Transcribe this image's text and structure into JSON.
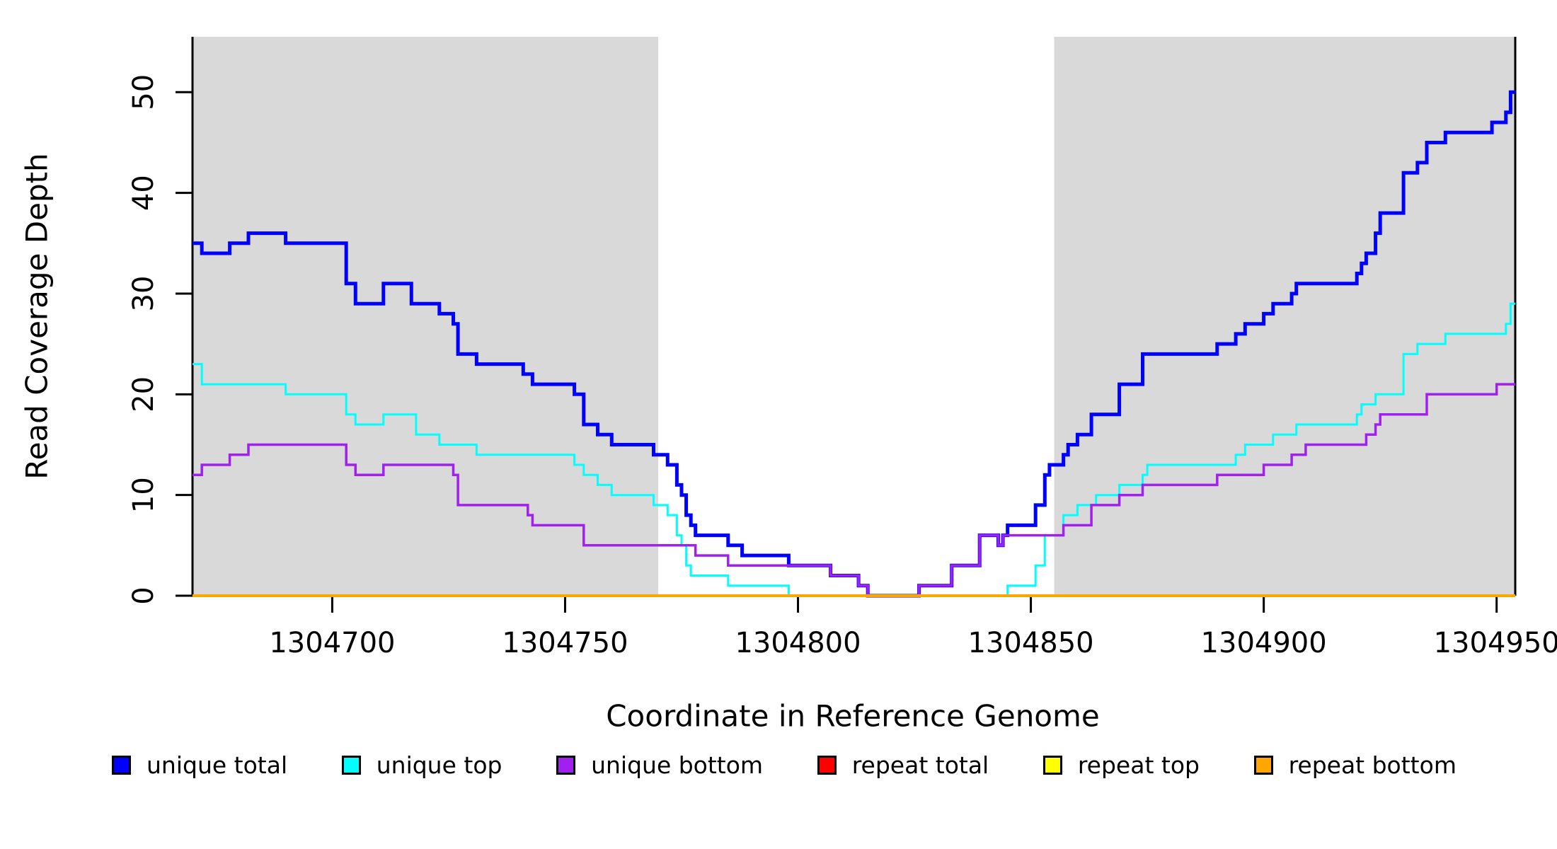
{
  "chart_data": {
    "type": "line",
    "subtype": "step-after",
    "title": "",
    "xlabel": "Coordinate in Reference Genome",
    "ylabel": "Read Coverage Depth",
    "xlim": [
      1304670,
      1304954
    ],
    "ylim": [
      0,
      55.5
    ],
    "x_ticks": [
      1304700,
      1304750,
      1304800,
      1304850,
      1304900,
      1304950
    ],
    "y_ticks": [
      0,
      10,
      20,
      30,
      40,
      50
    ],
    "grid": false,
    "legend_position": "bottom",
    "background_color": "#ffffff",
    "shaded_region_color": "#D9D9D9",
    "shaded_regions": [
      {
        "x0": 1304670,
        "x1": 1304770
      },
      {
        "x0": 1304855,
        "x1": 1304954
      }
    ],
    "series": [
      {
        "name": "unique total",
        "color": "#0000FF",
        "width": 5,
        "points": [
          [
            1304670,
            35
          ],
          [
            1304672,
            34
          ],
          [
            1304678,
            35
          ],
          [
            1304682,
            36
          ],
          [
            1304690,
            35
          ],
          [
            1304703,
            31
          ],
          [
            1304705,
            29
          ],
          [
            1304711,
            31
          ],
          [
            1304717,
            29
          ],
          [
            1304723,
            28
          ],
          [
            1304726,
            27
          ],
          [
            1304727,
            24
          ],
          [
            1304731,
            23
          ],
          [
            1304741,
            22
          ],
          [
            1304743,
            21
          ],
          [
            1304752,
            20
          ],
          [
            1304754,
            17
          ],
          [
            1304757,
            16
          ],
          [
            1304760,
            15
          ],
          [
            1304769,
            14
          ],
          [
            1304772,
            13
          ],
          [
            1304774,
            11
          ],
          [
            1304775,
            10
          ],
          [
            1304776,
            8
          ],
          [
            1304777,
            7
          ],
          [
            1304778,
            6
          ],
          [
            1304785,
            5
          ],
          [
            1304788,
            4
          ],
          [
            1304798,
            3
          ],
          [
            1304807,
            2
          ],
          [
            1304813,
            1
          ],
          [
            1304815,
            0
          ],
          [
            1304826,
            1
          ],
          [
            1304833,
            3
          ],
          [
            1304839,
            6
          ],
          [
            1304843,
            5
          ],
          [
            1304844,
            6
          ],
          [
            1304845,
            7
          ],
          [
            1304851,
            9
          ],
          [
            1304853,
            12
          ],
          [
            1304854,
            13
          ],
          [
            1304857,
            14
          ],
          [
            1304858,
            15
          ],
          [
            1304860,
            16
          ],
          [
            1304863,
            18
          ],
          [
            1304869,
            21
          ],
          [
            1304874,
            24
          ],
          [
            1304890,
            25
          ],
          [
            1304894,
            26
          ],
          [
            1304896,
            27
          ],
          [
            1304900,
            28
          ],
          [
            1304902,
            29
          ],
          [
            1304906,
            30
          ],
          [
            1304907,
            31
          ],
          [
            1304920,
            32
          ],
          [
            1304921,
            33
          ],
          [
            1304922,
            34
          ],
          [
            1304924,
            36
          ],
          [
            1304925,
            38
          ],
          [
            1304930,
            42
          ],
          [
            1304933,
            43
          ],
          [
            1304935,
            45
          ],
          [
            1304939,
            46
          ],
          [
            1304949,
            47
          ],
          [
            1304952,
            48
          ],
          [
            1304953,
            50
          ],
          [
            1304954,
            50
          ]
        ]
      },
      {
        "name": "unique top",
        "color": "#00FFFF",
        "width": 3,
        "points": [
          [
            1304670,
            23
          ],
          [
            1304672,
            21
          ],
          [
            1304690,
            20
          ],
          [
            1304703,
            18
          ],
          [
            1304705,
            17
          ],
          [
            1304711,
            18
          ],
          [
            1304718,
            16
          ],
          [
            1304723,
            15
          ],
          [
            1304731,
            14
          ],
          [
            1304752,
            13
          ],
          [
            1304754,
            12
          ],
          [
            1304757,
            11
          ],
          [
            1304760,
            10
          ],
          [
            1304769,
            9
          ],
          [
            1304772,
            8
          ],
          [
            1304774,
            6
          ],
          [
            1304775,
            5
          ],
          [
            1304776,
            3
          ],
          [
            1304777,
            2
          ],
          [
            1304785,
            1
          ],
          [
            1304798,
            0
          ],
          [
            1304845,
            1
          ],
          [
            1304851,
            3
          ],
          [
            1304853,
            6
          ],
          [
            1304857,
            8
          ],
          [
            1304860,
            9
          ],
          [
            1304864,
            10
          ],
          [
            1304869,
            11
          ],
          [
            1304874,
            12
          ],
          [
            1304875,
            13
          ],
          [
            1304894,
            14
          ],
          [
            1304896,
            15
          ],
          [
            1304902,
            16
          ],
          [
            1304907,
            17
          ],
          [
            1304920,
            18
          ],
          [
            1304921,
            19
          ],
          [
            1304924,
            20
          ],
          [
            1304930,
            24
          ],
          [
            1304933,
            25
          ],
          [
            1304939,
            26
          ],
          [
            1304952,
            27
          ],
          [
            1304953,
            29
          ],
          [
            1304954,
            29
          ]
        ]
      },
      {
        "name": "unique bottom",
        "color": "#A020F0",
        "width": 3.5,
        "points": [
          [
            1304670,
            12
          ],
          [
            1304672,
            13
          ],
          [
            1304678,
            14
          ],
          [
            1304682,
            15
          ],
          [
            1304703,
            13
          ],
          [
            1304705,
            12
          ],
          [
            1304711,
            13
          ],
          [
            1304726,
            12
          ],
          [
            1304727,
            9
          ],
          [
            1304742,
            8
          ],
          [
            1304743,
            7
          ],
          [
            1304754,
            5
          ],
          [
            1304778,
            4
          ],
          [
            1304785,
            3
          ],
          [
            1304807,
            2
          ],
          [
            1304813,
            1
          ],
          [
            1304815,
            0
          ],
          [
            1304826,
            1
          ],
          [
            1304833,
            3
          ],
          [
            1304839,
            6
          ],
          [
            1304843,
            5
          ],
          [
            1304844,
            6
          ],
          [
            1304857,
            7
          ],
          [
            1304863,
            9
          ],
          [
            1304869,
            10
          ],
          [
            1304874,
            11
          ],
          [
            1304890,
            12
          ],
          [
            1304900,
            13
          ],
          [
            1304906,
            14
          ],
          [
            1304909,
            15
          ],
          [
            1304922,
            16
          ],
          [
            1304924,
            17
          ],
          [
            1304925,
            18
          ],
          [
            1304935,
            20
          ],
          [
            1304950,
            21
          ],
          [
            1304954,
            21
          ]
        ]
      },
      {
        "name": "repeat total",
        "color": "#FF0000",
        "width": 3,
        "points": [
          [
            1304670,
            0
          ],
          [
            1304954,
            0
          ]
        ]
      },
      {
        "name": "repeat top",
        "color": "#FFFF00",
        "width": 3,
        "points": [
          [
            1304670,
            0
          ],
          [
            1304954,
            0
          ]
        ]
      },
      {
        "name": "repeat bottom",
        "color": "#FFA500",
        "width": 4,
        "points": [
          [
            1304670,
            0
          ],
          [
            1304954,
            0
          ]
        ]
      }
    ]
  }
}
